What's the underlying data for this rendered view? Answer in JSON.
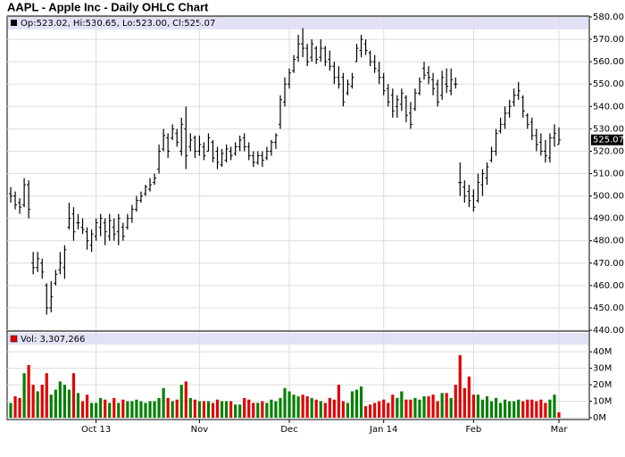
{
  "chart_data": [
    {
      "type": "ohlc",
      "title": "AAPL - Apple Inc - Daily OHLC Chart",
      "legend": "Op:523.02, Hi:530.65, Lo:523.00, Cl:525.07",
      "last_label": "525.07",
      "color": "#000000",
      "open": [
        501,
        500,
        497,
        496,
        505,
        470,
        468,
        470,
        460,
        450,
        461,
        467,
        468,
        486,
        492,
        488,
        486,
        484,
        478,
        482,
        486,
        488,
        482,
        486,
        484,
        486,
        486,
        490,
        494,
        498,
        501,
        503,
        506,
        512,
        521,
        526,
        526,
        528,
        520,
        530,
        522,
        526,
        520,
        522,
        520,
        524,
        520,
        514,
        516,
        520,
        519,
        522,
        526,
        522,
        518,
        515,
        518,
        517,
        520,
        524,
        532,
        542,
        550,
        556,
        562,
        568,
        566,
        562,
        566,
        562,
        566,
        561,
        558,
        553,
        553,
        546,
        549,
        560,
        565,
        568,
        564,
        560,
        556,
        553,
        548,
        545,
        540,
        541,
        544,
        537,
        539,
        546,
        557,
        555,
        552,
        550,
        545,
        550,
        547,
        550,
        506,
        504,
        502,
        500,
        498,
        505,
        508,
        516,
        520,
        529,
        532,
        537,
        542,
        545,
        544,
        536,
        533,
        527,
        524,
        520,
        517,
        526,
        523.02
      ],
      "high": [
        504,
        502,
        499,
        508,
        507,
        475,
        475,
        472,
        461,
        462,
        467,
        475,
        478,
        497,
        495,
        492,
        490,
        486,
        485,
        490,
        492,
        490,
        492,
        490,
        492,
        488,
        492,
        496,
        500,
        502,
        505,
        508,
        510,
        523,
        530,
        528,
        532,
        530,
        535,
        540,
        528,
        527,
        527,
        524,
        528,
        525,
        522,
        521,
        523,
        522,
        524,
        527,
        528,
        524,
        520,
        520,
        520,
        522,
        525,
        528,
        545,
        553,
        557,
        563,
        572,
        575,
        568,
        570,
        567,
        570,
        567,
        565,
        560,
        558,
        555,
        552,
        555,
        568,
        572,
        570,
        565,
        563,
        560,
        555,
        550,
        548,
        545,
        548,
        545,
        542,
        548,
        553,
        560,
        558,
        555,
        552,
        556,
        557,
        557,
        553,
        515,
        507,
        505,
        503,
        510,
        512,
        515,
        522,
        530,
        535,
        540,
        543,
        548,
        551,
        545,
        537,
        535,
        530,
        528,
        525,
        528,
        532,
        530.65
      ],
      "low": [
        497,
        494,
        492,
        495,
        490,
        465,
        466,
        463,
        447,
        448,
        460,
        465,
        463,
        485,
        480,
        485,
        483,
        476,
        475,
        480,
        482,
        478,
        480,
        480,
        478,
        480,
        485,
        488,
        493,
        497,
        500,
        502,
        505,
        510,
        520,
        517,
        525,
        522,
        518,
        512,
        520,
        517,
        518,
        516,
        520,
        515,
        512,
        513,
        515,
        516,
        518,
        520,
        520,
        516,
        513,
        514,
        513,
        516,
        518,
        521,
        530,
        540,
        548,
        555,
        560,
        562,
        558,
        560,
        559,
        560,
        558,
        556,
        550,
        548,
        540,
        545,
        548,
        560,
        562,
        563,
        558,
        555,
        550,
        545,
        540,
        535,
        535,
        538,
        533,
        530,
        538,
        545,
        552,
        550,
        545,
        540,
        543,
        546,
        545,
        548,
        500,
        497,
        495,
        493,
        497,
        500,
        505,
        515,
        518,
        528,
        530,
        535,
        540,
        543,
        535,
        530,
        525,
        520,
        518,
        515,
        515,
        522,
        523
      ],
      "close": [
        500,
        496,
        495,
        505,
        494,
        468,
        472,
        466,
        450,
        455,
        465,
        470,
        476,
        490,
        484,
        488,
        485,
        480,
        483,
        488,
        490,
        484,
        489,
        483,
        490,
        482,
        490,
        494,
        498,
        500,
        504,
        505,
        508,
        520,
        527,
        520,
        530,
        524,
        532,
        518,
        525,
        520,
        523,
        518,
        526,
        517,
        515,
        519,
        521,
        518,
        522,
        525,
        522,
        518,
        515,
        518,
        516,
        520,
        524,
        527,
        543,
        550,
        555,
        561,
        568,
        566,
        560,
        568,
        561,
        566,
        560,
        558,
        553,
        550,
        542,
        550,
        553,
        566,
        570,
        565,
        560,
        557,
        553,
        547,
        542,
        538,
        543,
        546,
        536,
        532,
        546,
        551,
        554,
        553,
        548,
        542,
        553,
        549,
        552,
        550,
        506,
        500,
        498,
        495,
        506,
        510,
        513,
        520,
        528,
        532,
        537,
        540,
        545,
        547,
        538,
        532,
        527,
        523,
        520,
        518,
        526,
        528,
        525.07
      ],
      "ylim": [
        440,
        580
      ],
      "yticks": [
        {
          "value": 440,
          "label": "440.00"
        },
        {
          "value": 450,
          "label": "450.00"
        },
        {
          "value": 460,
          "label": "460.00"
        },
        {
          "value": 470,
          "label": "470.00"
        },
        {
          "value": 480,
          "label": "480.00"
        },
        {
          "value": 490,
          "label": "490.00"
        },
        {
          "value": 500,
          "label": "500.00"
        },
        {
          "value": 510,
          "label": "510.00"
        },
        {
          "value": 520,
          "label": "520.00"
        },
        {
          "value": 530,
          "label": "530.00"
        },
        {
          "value": 540,
          "label": "540.00"
        },
        {
          "value": 550,
          "label": "550.00"
        },
        {
          "value": 560,
          "label": "560.00"
        },
        {
          "value": 570,
          "label": "570.00"
        },
        {
          "value": 580,
          "label": "580.00"
        }
      ],
      "grid": true
    },
    {
      "type": "bar",
      "legend": "Vol: 3,307,266",
      "up_color": "#008000",
      "down_color": "#e00000",
      "categories": [
        null,
        null,
        null,
        null,
        null,
        null,
        null,
        null,
        null,
        null,
        null,
        null,
        null,
        null,
        null,
        null,
        null,
        null,
        null,
        "Oct 13",
        null,
        null,
        null,
        null,
        null,
        null,
        null,
        null,
        null,
        null,
        null,
        null,
        null,
        null,
        null,
        null,
        null,
        null,
        null,
        null,
        null,
        null,
        "Nov",
        null,
        null,
        null,
        null,
        null,
        null,
        null,
        null,
        null,
        null,
        null,
        null,
        null,
        null,
        null,
        null,
        null,
        null,
        null,
        "Dec",
        null,
        null,
        null,
        null,
        null,
        null,
        null,
        null,
        null,
        null,
        null,
        null,
        null,
        null,
        null,
        null,
        null,
        null,
        null,
        null,
        "Jan 14",
        null,
        null,
        null,
        null,
        null,
        null,
        null,
        null,
        null,
        null,
        null,
        null,
        null,
        null,
        null,
        null,
        null,
        null,
        null,
        "Feb",
        null,
        null,
        null,
        null,
        null,
        null,
        null,
        null,
        null,
        null,
        null,
        null,
        null,
        null,
        null,
        null,
        null,
        null,
        "Mar"
      ],
      "values": [
        9,
        13,
        12,
        27,
        32,
        20,
        16,
        20,
        27,
        14,
        17,
        22,
        20,
        17,
        27,
        15,
        10,
        14,
        9,
        9,
        12,
        11,
        9,
        12,
        9,
        11,
        10,
        10,
        11,
        10,
        9,
        10,
        10,
        12,
        18,
        12,
        10,
        11,
        20,
        22,
        12,
        11,
        10,
        10,
        10,
        9,
        11,
        10,
        10,
        10,
        8,
        8,
        12,
        11,
        9,
        9,
        10,
        9,
        11,
        10,
        12,
        18,
        16,
        14,
        13,
        14,
        13,
        12,
        11,
        10,
        9,
        12,
        11,
        20,
        10,
        9,
        16,
        17,
        19,
        7,
        8,
        9,
        10,
        11,
        9,
        14,
        12,
        16,
        11,
        11,
        12,
        11,
        13,
        13,
        14,
        10,
        15,
        15,
        12,
        20,
        38,
        18,
        25,
        14,
        14,
        11,
        13,
        10,
        12,
        9,
        11,
        10,
        10,
        11,
        10,
        11,
        11,
        10,
        11,
        9,
        11,
        14,
        3.307266
      ],
      "ylim": [
        0,
        52
      ],
      "yticks": [
        {
          "value": 0,
          "label": "0M"
        },
        {
          "value": 10,
          "label": "10M"
        },
        {
          "value": 20,
          "label": "20M"
        },
        {
          "value": 30,
          "label": "30M"
        },
        {
          "value": 40,
          "label": "40M"
        }
      ],
      "grid": true
    }
  ]
}
